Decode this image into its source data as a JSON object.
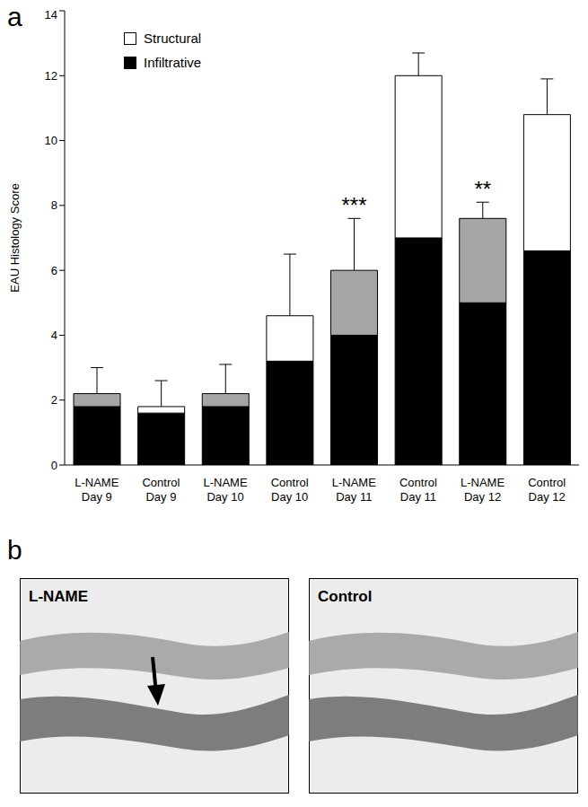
{
  "chart_data": {
    "type": "bar",
    "stacked": true,
    "categories": [
      "L-NAME Day 9",
      "Control Day 9",
      "L-NAME Day 10",
      "Control Day 10",
      "L-NAME Day 11",
      "Control Day 11",
      "L-NAME Day 12",
      "Control Day 12"
    ],
    "series": [
      {
        "name": "Infiltrative",
        "color": "#000000",
        "values": [
          1.8,
          1.6,
          1.8,
          3.2,
          4.0,
          7.0,
          5.0,
          6.6
        ]
      },
      {
        "name": "Structural",
        "color": "#ffffff",
        "colors": [
          "#a6a6a6",
          "#ffffff",
          "#a6a6a6",
          "#ffffff",
          "#a6a6a6",
          "#ffffff",
          "#a6a6a6",
          "#ffffff"
        ],
        "values": [
          0.4,
          0.2,
          0.4,
          1.4,
          2.0,
          5.0,
          2.6,
          4.2
        ],
        "errors": [
          0.8,
          0.8,
          0.9,
          1.9,
          1.6,
          0.7,
          0.5,
          1.1
        ]
      }
    ],
    "ylim": [
      0,
      14
    ],
    "yticks": [
      0,
      2,
      4,
      6,
      8,
      10,
      12,
      14
    ],
    "y_label": "EAU Histology Score",
    "legend": "upper left",
    "grid": false,
    "annotations": [
      {
        "category": "L-NAME Day 11",
        "text": "***"
      },
      {
        "category": "L-NAME Day 12",
        "text": "**"
      }
    ]
  },
  "panel_labels": [
    "a",
    "b"
  ],
  "images": [
    {
      "label": "L-NAME"
    },
    {
      "label": "Control"
    }
  ]
}
